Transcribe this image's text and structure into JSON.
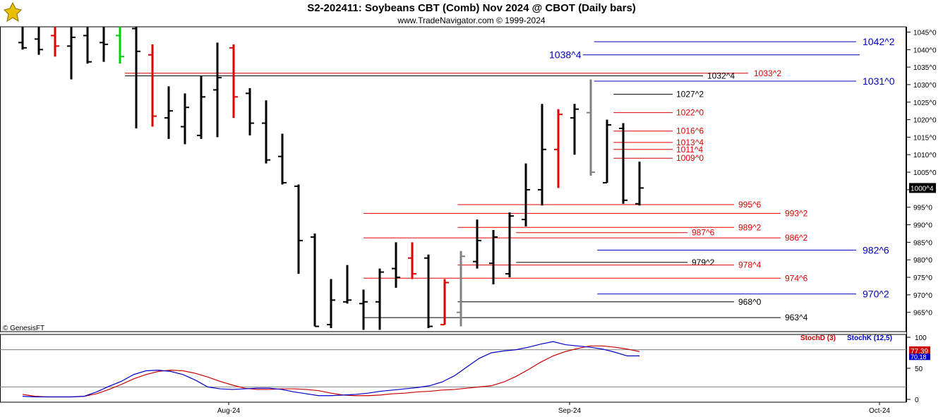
{
  "header": {
    "title": "S2-202411:  Soybeans CBT (Comb) Nov 2024 @ CBOT  (Daily bars)",
    "subtitle": "www.TradeNavigator.com © 1999-2024"
  },
  "copyright": "© GenesisFT",
  "colors": {
    "up_black": "#000000",
    "red": "#e00000",
    "green": "#00d000",
    "gray": "#808080",
    "blue": "#0000c0",
    "stochd": "#cc0000",
    "stochk": "#0000cc"
  },
  "chart_data": [
    {
      "type": "ohlc",
      "ylim": [
        959.5,
        1046.5
      ],
      "y_ticks": [
        "1045^0",
        "1040^0",
        "1035^0",
        "1030^0",
        "1025^0",
        "1020^0",
        "1015^0",
        "1010^0",
        "1005^0",
        "1000^0",
        "995^0",
        "990^0",
        "985^0",
        "980^0",
        "975^0",
        "970^0",
        "965^0"
      ],
      "y_tick_values": [
        1045,
        1040,
        1035,
        1030,
        1025,
        1020,
        1015,
        1010,
        1005,
        1000,
        995,
        990,
        985,
        980,
        975,
        970,
        965
      ],
      "last_price_label": "1000^4",
      "last_price": 1000.5,
      "x_labels": [
        "Aug-24",
        "Sep-24",
        "Oct-24"
      ],
      "bars": [
        {
          "h": 1046.5,
          "l": 1040.0,
          "o": 1042.0,
          "c": 1040.5,
          "color": "black"
        },
        {
          "h": 1046.5,
          "l": 1038.5,
          "o": 1043.0,
          "c": 1040.0,
          "color": "black"
        },
        {
          "h": 1046.5,
          "l": 1038.0,
          "o": 1044.0,
          "c": 1041.0,
          "color": "red"
        },
        {
          "h": 1046.5,
          "l": 1031.5,
          "o": 1041.0,
          "c": 1043.5,
          "color": "black"
        },
        {
          "h": 1046.5,
          "l": 1036.0,
          "o": 1044.0,
          "c": 1036.5,
          "color": "black"
        },
        {
          "h": 1046.5,
          "l": 1036.5,
          "o": 1042.0,
          "c": 1041.5,
          "color": "black"
        },
        {
          "h": 1046.5,
          "l": 1036.0,
          "o": 1044.0,
          "c": 1038.0,
          "color": "green"
        },
        {
          "h": 1046.5,
          "l": 1017.5,
          "o": 1046.0,
          "c": 1039.5,
          "color": "black"
        },
        {
          "h": 1041.5,
          "l": 1018.0,
          "o": 1038.5,
          "c": 1021.0,
          "color": "red"
        },
        {
          "h": 1029.5,
          "l": 1014.5,
          "o": 1020.5,
          "c": 1022.5,
          "color": "black"
        },
        {
          "h": 1027.5,
          "l": 1013.0,
          "o": 1018.0,
          "c": 1023.5,
          "color": "black"
        },
        {
          "h": 1032.5,
          "l": 1014.5,
          "o": 1015.5,
          "c": 1026.5,
          "color": "black"
        },
        {
          "h": 1042.0,
          "l": 1015.0,
          "o": 1028.5,
          "c": 1032.0,
          "color": "black"
        },
        {
          "h": 1041.5,
          "l": 1020.5,
          "o": 1040.5,
          "c": 1026.5,
          "color": "red"
        },
        {
          "h": 1029.0,
          "l": 1015.5,
          "o": 1027.5,
          "c": 1019.0,
          "color": "black"
        },
        {
          "h": 1025.5,
          "l": 1007.5,
          "o": 1019.0,
          "c": 1008.5,
          "color": "black"
        },
        {
          "h": 1016.0,
          "l": 1001.5,
          "o": 1009.5,
          "c": 1002.0,
          "color": "black"
        },
        {
          "h": 1001.5,
          "l": 976.0,
          "o": 1001.0,
          "c": 985.5,
          "color": "black"
        },
        {
          "h": 987.5,
          "l": 961.0,
          "o": 986.5,
          "c": 961.0,
          "color": "black"
        },
        {
          "h": 974.5,
          "l": 960.5,
          "o": 961.5,
          "c": 968.5,
          "color": "black"
        },
        {
          "h": 978.5,
          "l": 967.5,
          "o": 968.0,
          "c": 968.5,
          "color": "black"
        },
        {
          "h": 971.5,
          "l": 960.0,
          "o": 967.5,
          "c": 968.0,
          "color": "black"
        },
        {
          "h": 977.5,
          "l": 960.0,
          "o": 968.0,
          "c": 976.5,
          "color": "black"
        },
        {
          "h": 985.0,
          "l": 972.0,
          "o": 977.5,
          "c": 975.0,
          "color": "black"
        },
        {
          "h": 985.0,
          "l": 974.5,
          "o": 980.5,
          "c": 976.0,
          "color": "red"
        },
        {
          "h": 981.5,
          "l": 960.5,
          "o": 980.5,
          "c": 961.0,
          "color": "black"
        },
        {
          "h": 974.5,
          "l": 961.5,
          "o": 961.5,
          "c": 973.5,
          "color": "red"
        },
        {
          "h": 982.5,
          "l": 961.0,
          "o": 965.0,
          "c": 981.0,
          "color": "gray"
        },
        {
          "h": 991.5,
          "l": 977.5,
          "o": 979.5,
          "c": 985.5,
          "color": "black"
        },
        {
          "h": 988.5,
          "l": 973.0,
          "o": 979.0,
          "c": 986.5,
          "color": "black"
        },
        {
          "h": 993.5,
          "l": 975.0,
          "o": 976.0,
          "c": 992.5,
          "color": "black"
        },
        {
          "h": 1007.5,
          "l": 989.5,
          "o": 991.5,
          "c": 1000.0,
          "color": "black"
        },
        {
          "h": 1024.5,
          "l": 995.5,
          "o": 1000.0,
          "c": 1011.5,
          "color": "black"
        },
        {
          "h": 1023.0,
          "l": 1000.5,
          "o": 1011.5,
          "c": 1021.5,
          "color": "red"
        },
        {
          "h": 1024.5,
          "l": 1010.0,
          "o": 1020.5,
          "c": 1023.0,
          "color": "black"
        },
        {
          "h": 1031.5,
          "l": 1004.0,
          "o": 1022.0,
          "c": 1005.0,
          "color": "gray"
        },
        {
          "h": 1020.0,
          "l": 1002.0,
          "o": 1002.0,
          "c": 1018.5,
          "color": "black"
        },
        {
          "h": 1019.0,
          "l": 996.0,
          "o": 1017.5,
          "c": 997.0,
          "color": "black"
        },
        {
          "h": 1008.0,
          "l": 995.5,
          "o": 996.0,
          "c": 1000.5,
          "color": "black"
        }
      ],
      "levels": [
        {
          "label": "1042^2",
          "value": 1042.25,
          "color": "blue"
        },
        {
          "label": "1038^4",
          "value": 1038.5,
          "color": "blue"
        },
        {
          "label": "1033^2",
          "value": 1033.25,
          "color": "red"
        },
        {
          "label": "1032^4",
          "value": 1032.5,
          "color": "black"
        },
        {
          "label": "1031^0",
          "value": 1031.0,
          "color": "blue"
        },
        {
          "label": "1027^2",
          "value": 1027.25,
          "color": "black"
        },
        {
          "label": "1022^0",
          "value": 1022.0,
          "color": "red"
        },
        {
          "label": "1016^6",
          "value": 1016.75,
          "color": "red"
        },
        {
          "label": "1013^4",
          "value": 1013.5,
          "color": "red"
        },
        {
          "label": "1011^4",
          "value": 1011.5,
          "color": "red"
        },
        {
          "label": "1009^0",
          "value": 1009.0,
          "color": "red"
        },
        {
          "label": "995^6",
          "value": 995.75,
          "color": "red"
        },
        {
          "label": "993^2",
          "value": 993.25,
          "color": "red"
        },
        {
          "label": "989^2",
          "value": 989.25,
          "color": "red"
        },
        {
          "label": "987^6",
          "value": 987.75,
          "color": "red"
        },
        {
          "label": "986^2",
          "value": 986.25,
          "color": "red"
        },
        {
          "label": "982^6",
          "value": 982.75,
          "color": "blue"
        },
        {
          "label": "979^2",
          "value": 979.25,
          "color": "black"
        },
        {
          "label": "978^4",
          "value": 978.5,
          "color": "red"
        },
        {
          "label": "974^6",
          "value": 974.75,
          "color": "red"
        },
        {
          "label": "970^2",
          "value": 970.25,
          "color": "blue"
        },
        {
          "label": "968^0",
          "value": 968.0,
          "color": "black"
        },
        {
          "label": "963^4",
          "value": 963.5,
          "color": "black"
        }
      ]
    },
    {
      "type": "line",
      "ylim": [
        0,
        100
      ],
      "y_ticks": [
        "100",
        "50",
        "0"
      ],
      "y_tick_values": [
        100,
        50,
        0
      ],
      "ref_lines": [
        80,
        20
      ],
      "series": [
        {
          "name": "StochD (3)",
          "value_label": "77.39",
          "values": [
            8,
            5,
            4,
            4,
            4,
            5,
            9,
            16,
            24,
            33,
            40,
            45,
            47,
            46,
            42,
            36,
            29,
            23,
            18,
            16,
            16,
            17,
            17,
            16,
            14,
            10,
            7,
            6,
            6,
            7,
            9,
            10,
            12,
            13,
            15,
            16,
            18,
            20,
            22,
            28,
            37,
            48,
            60,
            70,
            77,
            82,
            86,
            86,
            84,
            81,
            77
          ]
        },
        {
          "name": "StochK (12,5)",
          "value_label": "70.18",
          "values": [
            5,
            4,
            4,
            4,
            4,
            5,
            12,
            21,
            29,
            40,
            46,
            47,
            45,
            40,
            31,
            20,
            17,
            16,
            17,
            18,
            18,
            16,
            12,
            9,
            6,
            6,
            7,
            8,
            10,
            13,
            15,
            17,
            19,
            22,
            28,
            38,
            52,
            66,
            75,
            78,
            80,
            84,
            89,
            93,
            88,
            86,
            84,
            81,
            76,
            70,
            70
          ]
        }
      ]
    }
  ]
}
